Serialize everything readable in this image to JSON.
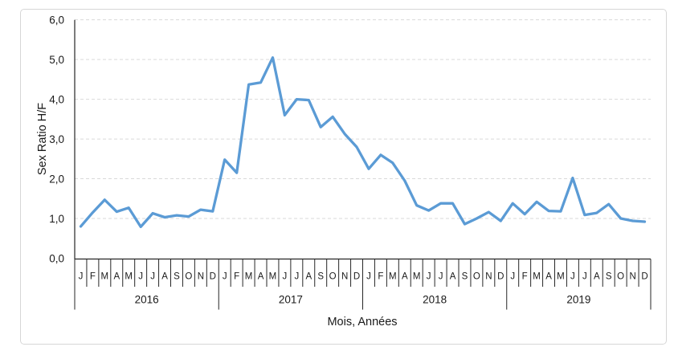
{
  "figure": {
    "y_axis_title": "Sex Ratio H/F",
    "x_axis_title": "Mois, Années"
  },
  "chart_data": {
    "type": "line",
    "title": "",
    "ylabel": "Sex Ratio H/F",
    "xlabel": "Mois, Années",
    "ylim": [
      0.0,
      6.0
    ],
    "y_tick_interval": 1.0,
    "y_tick_labels": [
      "0,0",
      "1,0",
      "2,0",
      "3,0",
      "4,0",
      "5,0",
      "6,0"
    ],
    "grid": "horizontal-dashed",
    "legend": "none",
    "line_color": "#5B9BD5",
    "gridline_color": "#D9D9D9",
    "axis_color": "#262626",
    "month_labels": [
      "J",
      "F",
      "M",
      "A",
      "M",
      "J",
      "J",
      "A",
      "S",
      "O",
      "N",
      "D"
    ],
    "years": [
      "2016",
      "2017",
      "2018",
      "2019"
    ],
    "series": [
      {
        "name": "Sex Ratio H/F",
        "values": [
          0.8,
          1.15,
          1.47,
          1.17,
          1.27,
          0.79,
          1.13,
          1.03,
          1.08,
          1.05,
          1.22,
          1.18,
          2.48,
          2.15,
          4.37,
          4.42,
          5.05,
          3.6,
          4.0,
          3.98,
          3.3,
          3.56,
          3.13,
          2.8,
          2.25,
          2.6,
          2.4,
          1.95,
          1.33,
          1.2,
          1.38,
          1.38,
          0.86,
          1.0,
          1.16,
          0.94,
          1.38,
          1.11,
          1.42,
          1.19,
          1.18,
          2.02,
          1.09,
          1.14,
          1.36,
          1.0,
          0.94,
          0.92
        ]
      }
    ]
  }
}
